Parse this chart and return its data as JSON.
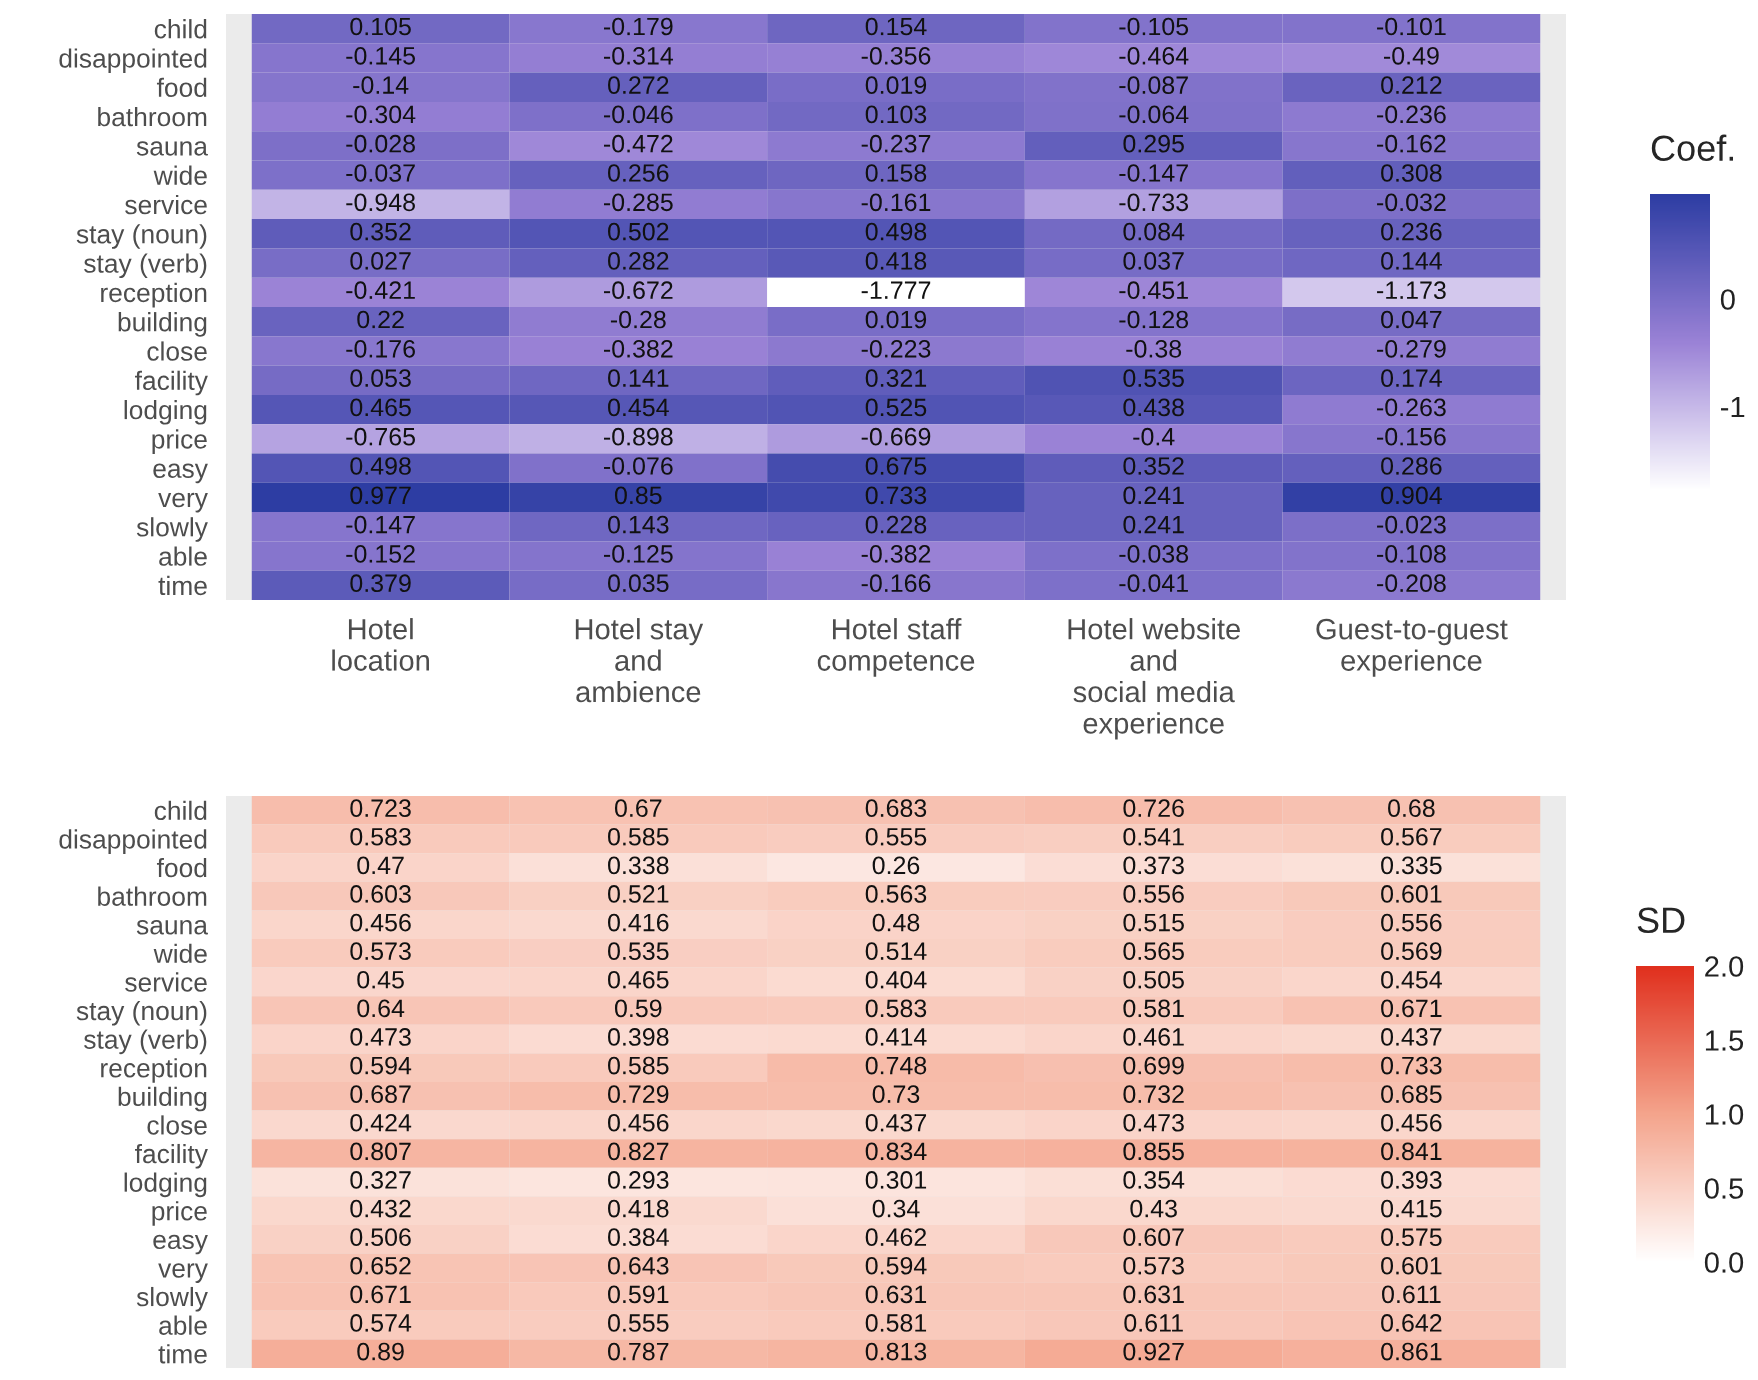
{
  "chart_data": [
    {
      "type": "heatmap",
      "clabel": "Coef.",
      "data_labels": true,
      "categories": [
        "Hotel\nlocation",
        "Hotel stay\nand\nambience",
        "Hotel staff\ncompetence",
        "Hotel website\nand\nsocial media\nexperience",
        "Guest-to-guest\nexperience"
      ],
      "y_categories": [
        "child",
        "disappointed",
        "food",
        "bathroom",
        "sauna",
        "wide",
        "service",
        "stay (noun)",
        "stay (verb)",
        "reception",
        "building",
        "close",
        "facility",
        "lodging",
        "price",
        "easy",
        "very",
        "slowly",
        "able",
        "time"
      ],
      "cells": [
        [
          0.105,
          -0.179,
          0.154,
          -0.105,
          -0.101
        ],
        [
          -0.145,
          -0.314,
          -0.356,
          -0.464,
          -0.49
        ],
        [
          -0.14,
          0.272,
          0.019,
          -0.087,
          0.212
        ],
        [
          -0.304,
          -0.046,
          0.103,
          -0.064,
          -0.236
        ],
        [
          -0.028,
          -0.472,
          -0.237,
          0.295,
          -0.162
        ],
        [
          -0.037,
          0.256,
          0.158,
          -0.147,
          0.308
        ],
        [
          -0.948,
          -0.285,
          -0.161,
          -0.733,
          -0.032
        ],
        [
          0.352,
          0.502,
          0.498,
          0.084,
          0.236
        ],
        [
          0.027,
          0.282,
          0.418,
          0.037,
          0.144
        ],
        [
          -0.421,
          -0.672,
          -1.777,
          -0.451,
          -1.173
        ],
        [
          0.22,
          -0.28,
          0.019,
          -0.128,
          0.047
        ],
        [
          -0.176,
          -0.382,
          -0.223,
          -0.38,
          -0.279
        ],
        [
          0.053,
          0.141,
          0.321,
          0.535,
          0.174
        ],
        [
          0.465,
          0.454,
          0.525,
          0.438,
          -0.263
        ],
        [
          -0.765,
          -0.898,
          -0.669,
          -0.4,
          -0.156
        ],
        [
          0.498,
          -0.076,
          0.675,
          0.352,
          0.286
        ],
        [
          0.977,
          0.85,
          0.733,
          0.241,
          0.904
        ],
        [
          -0.147,
          0.143,
          0.228,
          0.241,
          -0.023
        ],
        [
          -0.152,
          -0.125,
          -0.382,
          -0.038,
          -0.108
        ],
        [
          0.379,
          0.035,
          -0.166,
          -0.041,
          -0.208
        ]
      ],
      "clim": [
        -1.777,
        0.977
      ],
      "cticks": [
        -1,
        0
      ]
    },
    {
      "type": "heatmap",
      "clabel": "SD",
      "data_labels": true,
      "categories": [
        null,
        null,
        null,
        null,
        null
      ],
      "y_categories": [
        "child",
        "disappointed",
        "food",
        "bathroom",
        "sauna",
        "wide",
        "service",
        "stay (noun)",
        "stay (verb)",
        "reception",
        "building",
        "close",
        "facility",
        "lodging",
        "price",
        "easy",
        "very",
        "slowly",
        "able",
        "time"
      ],
      "cells": [
        [
          0.723,
          0.67,
          0.683,
          0.726,
          0.68
        ],
        [
          0.583,
          0.585,
          0.555,
          0.541,
          0.567
        ],
        [
          0.47,
          0.338,
          0.26,
          0.373,
          0.335
        ],
        [
          0.603,
          0.521,
          0.563,
          0.556,
          0.601
        ],
        [
          0.456,
          0.416,
          0.48,
          0.515,
          0.556
        ],
        [
          0.573,
          0.535,
          0.514,
          0.565,
          0.569
        ],
        [
          0.45,
          0.465,
          0.404,
          0.505,
          0.454
        ],
        [
          0.64,
          0.59,
          0.583,
          0.581,
          0.671
        ],
        [
          0.473,
          0.398,
          0.414,
          0.461,
          0.437
        ],
        [
          0.594,
          0.585,
          0.748,
          0.699,
          0.733
        ],
        [
          0.687,
          0.729,
          0.73,
          0.732,
          0.685
        ],
        [
          0.424,
          0.456,
          0.437,
          0.473,
          0.456
        ],
        [
          0.807,
          0.827,
          0.834,
          0.855,
          0.841
        ],
        [
          0.327,
          0.293,
          0.301,
          0.354,
          0.393
        ],
        [
          0.432,
          0.418,
          0.34,
          0.43,
          0.415
        ],
        [
          0.506,
          0.384,
          0.462,
          0.607,
          0.575
        ],
        [
          0.652,
          0.643,
          0.594,
          0.573,
          0.601
        ],
        [
          0.671,
          0.591,
          0.631,
          0.631,
          0.611
        ],
        [
          0.574,
          0.555,
          0.581,
          0.611,
          0.642
        ],
        [
          0.89,
          0.787,
          0.813,
          0.927,
          0.861
        ]
      ],
      "clim": [
        0,
        2
      ],
      "cticks": [
        {
          "value": 0,
          "label": "0.0"
        },
        {
          "value": 0.5,
          "label": "0.5"
        },
        {
          "value": 1,
          "label": "1.0"
        },
        {
          "value": 1.5,
          "label": "1.5"
        },
        {
          "value": 2,
          "label": "2.0"
        }
      ]
    }
  ]
}
